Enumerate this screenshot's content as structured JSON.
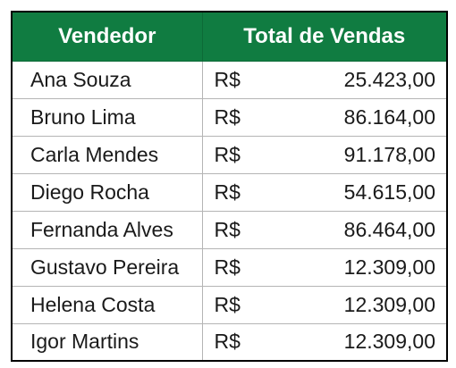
{
  "table": {
    "headers": {
      "seller": "Vendedor",
      "total": "Total de Vendas"
    },
    "currency": "R$",
    "rows": [
      {
        "seller": "Ana Souza",
        "total": "25.423,00"
      },
      {
        "seller": "Bruno Lima",
        "total": "86.164,00"
      },
      {
        "seller": "Carla Mendes",
        "total": "91.178,00"
      },
      {
        "seller": "Diego Rocha",
        "total": "54.615,00"
      },
      {
        "seller": "Fernanda Alves",
        "total": "86.464,00"
      },
      {
        "seller": "Gustavo Pereira",
        "total": "12.309,00"
      },
      {
        "seller": "Helena Costa",
        "total": "12.309,00"
      },
      {
        "seller": "Igor Martins",
        "total": "12.309,00"
      }
    ]
  },
  "colors": {
    "header_background": "#107c41",
    "header_text": "#ffffff",
    "cell_text": "#1a1a1a",
    "grid_line": "#b5b5b5"
  }
}
